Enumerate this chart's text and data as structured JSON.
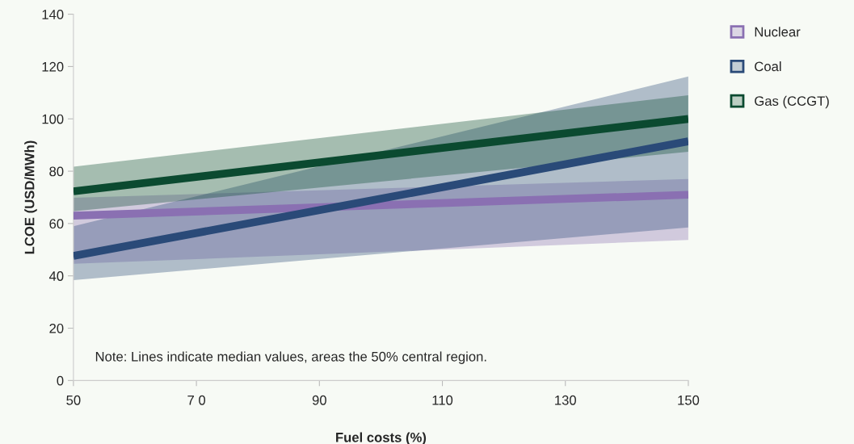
{
  "chart_data": {
    "type": "line",
    "xlabel": "Fuel costs (%)",
    "ylabel": "LCOE (USD/MWh)",
    "x": [
      50,
      150
    ],
    "series": [
      {
        "name": "Nuclear",
        "color": "#8a70b2",
        "values": [
          63,
          71
        ],
        "lower": [
          44.6,
          53.7
        ],
        "upper": [
          69.8,
          77
        ]
      },
      {
        "name": "Coal",
        "color": "#2a4a78",
        "values": [
          47.6,
          91.4
        ],
        "lower": [
          38.4,
          58.5
        ],
        "upper": [
          59,
          116.2
        ]
      },
      {
        "name": "Gas (CCGT)",
        "color": "#0b4a30",
        "values": [
          72.3,
          100
        ],
        "lower": [
          64.7,
          87.4
        ],
        "upper": [
          81.7,
          109
        ]
      }
    ],
    "xlim": [
      50,
      150
    ],
    "xticks": [
      50,
      {
        "value": 70,
        "label": "7 0"
      },
      90,
      110,
      130,
      150
    ],
    "ylim": [
      0,
      140
    ],
    "yticks": [
      0,
      20,
      40,
      60,
      80,
      100,
      120,
      140
    ],
    "grid": false,
    "legend": "top right",
    "annotations": [
      "Note: Lines indicate median values, areas the 50% central region."
    ]
  }
}
